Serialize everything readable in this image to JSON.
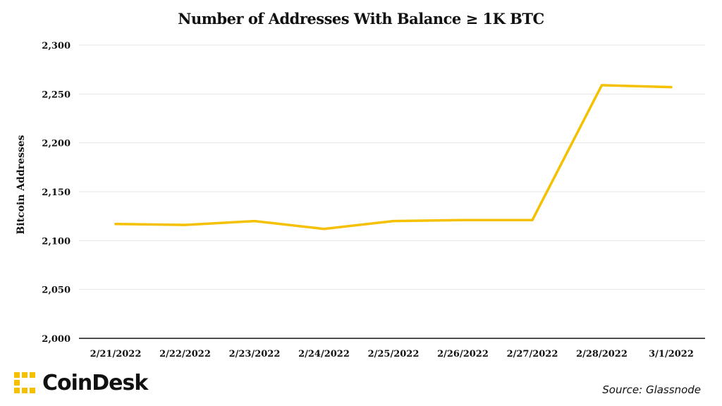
{
  "brand": {
    "name": "CoinDesk",
    "accent_color": "#F5C000"
  },
  "source": "Source: Glassnode",
  "chart_data": {
    "type": "line",
    "title": "Number of Addresses With Balance ≥ 1K BTC",
    "xlabel": "",
    "ylabel": "Bitcoin Addresses",
    "categories": [
      "2/21/2022",
      "2/22/2022",
      "2/23/2022",
      "2/24/2022",
      "2/25/2022",
      "2/26/2022",
      "2/27/2022",
      "2/28/2022",
      "3/1/2022"
    ],
    "series": [
      {
        "color": "#F5C000",
        "values": [
          2117,
          2116,
          2120,
          2112,
          2120,
          2121,
          2121,
          2259,
          2257
        ]
      }
    ],
    "ylim": [
      2000,
      2300
    ],
    "yticks": [
      2000,
      2050,
      2100,
      2150,
      2200,
      2250,
      2300
    ],
    "ytick_labels": [
      "2,000",
      "2,050",
      "2,100",
      "2,150",
      "2,200",
      "2,250",
      "2,300"
    ],
    "grid": true,
    "legend": "none"
  }
}
